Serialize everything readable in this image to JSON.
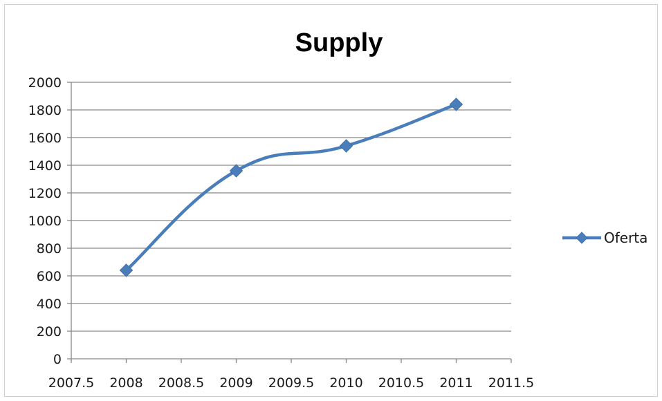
{
  "chart_data": {
    "type": "scatter",
    "title": "Supply",
    "xlim": [
      2007.5,
      2011.5
    ],
    "ylim": [
      0,
      2000
    ],
    "x_ticks": [
      "2007.5",
      "2008",
      "2008.5",
      "2009",
      "2009.5",
      "2010",
      "2010.5",
      "2011",
      "2011.5"
    ],
    "y_ticks": [
      "0",
      "200",
      "400",
      "600",
      "800",
      "1000",
      "1200",
      "1400",
      "1600",
      "1800",
      "2000"
    ],
    "grid": true,
    "legend_position": "right",
    "series": [
      {
        "name": "Oferta",
        "color": "#4a7ebb",
        "marker": "diamond",
        "smooth": true,
        "x": [
          2008,
          2009,
          2010,
          2011
        ],
        "y": [
          640,
          1360,
          1540,
          1840
        ]
      }
    ]
  }
}
